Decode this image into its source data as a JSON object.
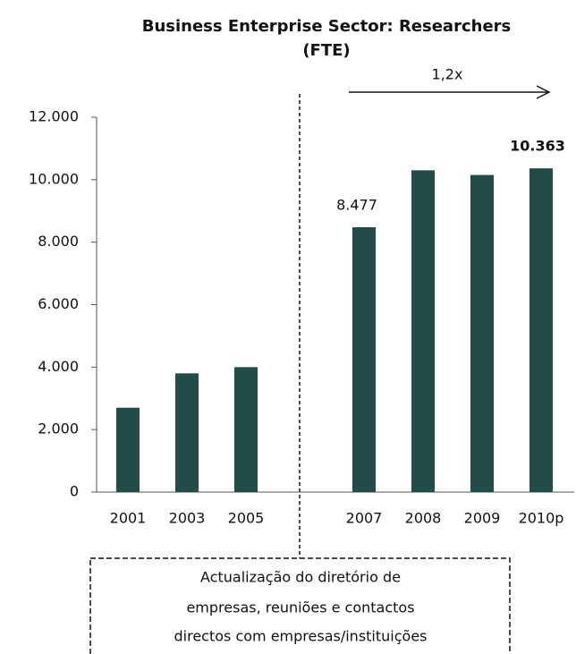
{
  "chart_data": {
    "type": "bar",
    "title": [
      "Business Enterprise Sector:  Researchers",
      "(FTE)"
    ],
    "categories": [
      "2001",
      "2003",
      "2005",
      null,
      "2007",
      "2008",
      "2009",
      "2010p"
    ],
    "values": [
      2700,
      3800,
      4000,
      null,
      8477,
      10300,
      10150,
      10363
    ],
    "value_labels": [
      null,
      null,
      null,
      null,
      "8.477",
      null,
      null,
      "10.363"
    ],
    "color": "#234b48",
    "ylim": [
      0,
      12000
    ],
    "yticks": [
      0,
      {
        "value": 2000,
        "label": "2.000"
      },
      {
        "value": 4000,
        "label": "4.000"
      },
      {
        "value": 6000,
        "label": "6.000"
      },
      {
        "value": 8000,
        "label": "8.000"
      },
      {
        "value": 10000,
        "label": "10.000"
      },
      {
        "value": 12000,
        "label": "12.000"
      }
    ],
    "annotations": [
      "1,2x"
    ],
    "note_lines": [
      "Actualização do diretório de",
      "empresas, reuniões e contactos",
      "directos com empresas/instituições"
    ]
  }
}
